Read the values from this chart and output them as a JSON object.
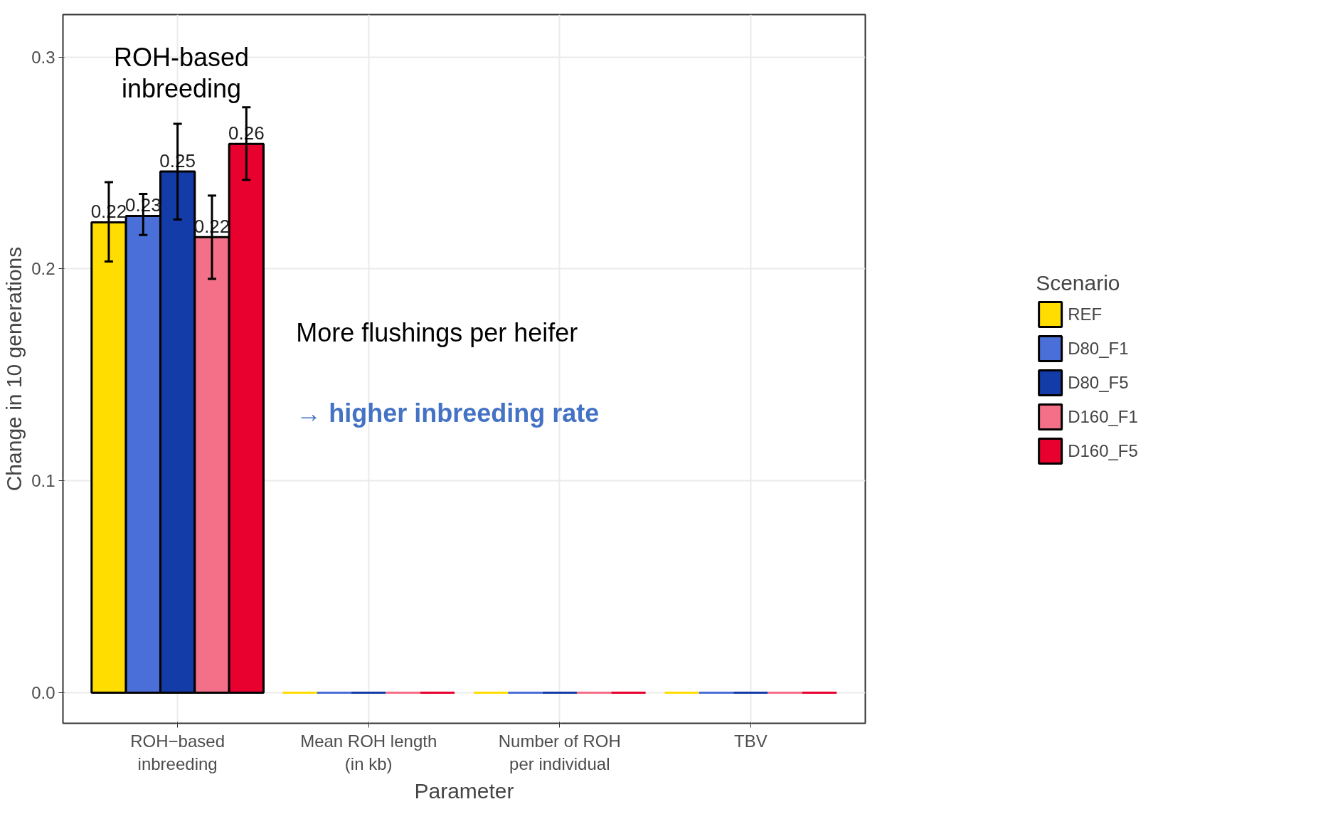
{
  "chart_data": {
    "type": "bar",
    "xlabel": "Parameter",
    "ylabel": "Change in 10 generations",
    "legend_title": "Scenario",
    "categories": [
      "ROH−based\ninbreeding",
      "Mean ROH length\n(in kb)",
      "Number of ROH\nper individual",
      "TBV"
    ],
    "ylim": [
      -0.0144,
      0.32
    ],
    "yticks": [
      {
        "value": 0,
        "label": "0.0"
      },
      0.1,
      0.2,
      0.3
    ],
    "grid": true,
    "legend": "right",
    "series": [
      {
        "name": "REF",
        "color": "#ffdd00",
        "values": [
          0.222,
          0,
          0,
          0
        ],
        "errors": [
          [
            0.2035,
            0.2409
          ],
          null,
          null,
          null
        ],
        "value_labels": [
          "0.22",
          null,
          null,
          null
        ]
      },
      {
        "name": "D80_F1",
        "color": "#4a6fd8",
        "values": [
          0.225,
          0,
          0,
          0
        ],
        "errors": [
          [
            0.216,
            0.2354
          ],
          null,
          null,
          null
        ],
        "value_labels": [
          "0.23",
          null,
          null,
          null
        ]
      },
      {
        "name": "D80_F5",
        "color": "#143ca8",
        "values": [
          0.246,
          0,
          0,
          0
        ],
        "errors": [
          [
            0.2233,
            0.2685
          ],
          null,
          null,
          null
        ],
        "value_labels": [
          "0.25",
          null,
          null,
          null
        ]
      },
      {
        "name": "D160_F1",
        "color": "#f47088",
        "values": [
          0.215,
          0,
          0,
          0
        ],
        "errors": [
          [
            0.1953,
            0.2346
          ],
          null,
          null,
          null
        ],
        "value_labels": [
          "0.22",
          null,
          null,
          null
        ]
      },
      {
        "name": "D160_F5",
        "color": "#e8002f",
        "values": [
          0.259,
          0,
          0,
          0
        ],
        "errors": [
          [
            0.242,
            0.2763
          ],
          null,
          null,
          null
        ],
        "value_labels": [
          "0.26",
          null,
          null,
          null
        ]
      }
    ],
    "annotations": [
      "ROH-based\ninbreeding",
      "More flushings per heifer",
      "→ higher inbreeding rate"
    ]
  }
}
